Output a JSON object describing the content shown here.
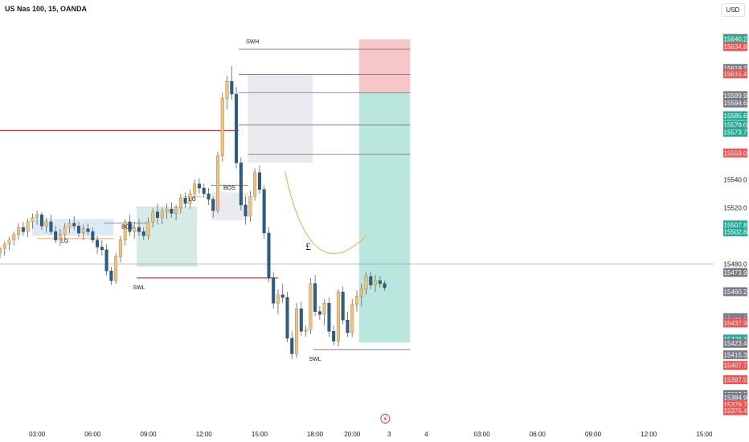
{
  "header": {
    "title": "US Nas 100, 15, OANDA",
    "currency": "USD"
  },
  "colors": {
    "up": "#f0c27a",
    "down": "#2b5f86",
    "neutral": "#6e6f73",
    "red_label": "#f05350",
    "green_label": "#22ab94",
    "gray_label": "#787b86",
    "line_red": "#e53935",
    "line_orange": "#f5a742",
    "zone_blue": "#dceaf5",
    "zone_green": "#d6eae6",
    "zone_gray": "#e9ebf0",
    "target_green": "#b9e6dd",
    "stop_red": "#f6c6c9"
  },
  "chart_data": {
    "type": "candlestick",
    "title": "US Nas 100, 15, OANDA",
    "y_unit": "USD",
    "ylim": [
      15368,
      15668
    ],
    "price_axis_labels": [
      {
        "value": "15640.7",
        "style": "red"
      },
      {
        "value": "15640.2",
        "style": "green"
      },
      {
        "value": "15634.8",
        "style": "red"
      },
      {
        "value": "15619.2",
        "style": "gray"
      },
      {
        "value": "15615.4",
        "style": "red"
      },
      {
        "value": "15599.9",
        "style": "gray"
      },
      {
        "value": "15594.6",
        "style": "gray"
      },
      {
        "value": "15585.6",
        "style": "green"
      },
      {
        "value": "15579.0",
        "style": "green"
      },
      {
        "value": "15574.3",
        "style": "gray"
      },
      {
        "value": "15573.7",
        "style": "green"
      },
      {
        "value": "15559.0",
        "style": "red"
      },
      {
        "value": "15540.0",
        "style": "plain"
      },
      {
        "value": "15520.0",
        "style": "plain"
      },
      {
        "value": "15507.8",
        "style": "green"
      },
      {
        "value": "15502.8",
        "style": "green"
      },
      {
        "value": "15480.0",
        "style": "plain"
      },
      {
        "value": "15473.9",
        "style": "gray"
      },
      {
        "value": "15460.2",
        "style": "gray"
      },
      {
        "value": "15441.7",
        "style": "gray"
      },
      {
        "value": "15439.9",
        "style": "gray"
      },
      {
        "value": "15437.9",
        "style": "red"
      },
      {
        "value": "15426.5",
        "style": "red"
      },
      {
        "value": "15426.4",
        "style": "green"
      },
      {
        "value": "15423.4",
        "style": "gray"
      },
      {
        "value": "15415.3",
        "style": "gray"
      },
      {
        "value": "15407.7",
        "style": "red"
      },
      {
        "value": "15397.5",
        "style": "red"
      },
      {
        "value": "15387.0",
        "style": "gray"
      },
      {
        "value": "15384.9",
        "style": "gray"
      },
      {
        "value": "15379.7",
        "style": "red"
      },
      {
        "value": "15375.4",
        "style": "red"
      }
    ],
    "x_ticks": [
      {
        "label": "03:00",
        "bar": 3.0
      },
      {
        "label": "06:00",
        "bar": 15.0
      },
      {
        "label": "09:00",
        "bar": 27.0
      },
      {
        "label": "12:00",
        "bar": 39.0
      },
      {
        "label": "15:00",
        "bar": 51.0
      },
      {
        "label": "18:00",
        "bar": 63.0
      },
      {
        "label": "20:00",
        "bar": 71.0
      },
      {
        "label": "3",
        "bar": 79.0
      },
      {
        "label": "4",
        "bar": 87.0
      },
      {
        "label": "03:00",
        "bar": 99.0
      },
      {
        "label": "06:00",
        "bar": 111.0
      },
      {
        "label": "09:00",
        "bar": 123.0
      },
      {
        "label": "12:00",
        "bar": 135.0
      },
      {
        "label": "15:00",
        "bar": 147.0
      }
    ],
    "x_bar_range": [
      -5,
      149
    ],
    "candles": [
      [
        15488,
        15492,
        15484,
        15491
      ],
      [
        15491,
        15496,
        15486,
        15494
      ],
      [
        15494,
        15499,
        15490,
        15497
      ],
      [
        15497,
        15503,
        15493,
        15501
      ],
      [
        15501,
        15509,
        15497,
        15506
      ],
      [
        15506,
        15510,
        15500,
        15503
      ],
      [
        15503,
        15512,
        15499,
        15510
      ],
      [
        15510,
        15516,
        15505,
        15513
      ],
      [
        15513,
        15518,
        15508,
        15515
      ],
      [
        15515,
        15517,
        15504,
        15507
      ],
      [
        15507,
        15513,
        15502,
        15510
      ],
      [
        15510,
        15515,
        15501,
        15503
      ],
      [
        15503,
        15507,
        15495,
        15497
      ],
      [
        15497,
        15505,
        15493,
        15501
      ],
      [
        15501,
        15509,
        15497,
        15506
      ],
      [
        15506,
        15512,
        15502,
        15509
      ],
      [
        15509,
        15514,
        15504,
        15507
      ],
      [
        15507,
        15510,
        15499,
        15502
      ],
      [
        15502,
        15508,
        15497,
        15505
      ],
      [
        15505,
        15509,
        15500,
        15503
      ],
      [
        15503,
        15506,
        15495,
        15497
      ],
      [
        15497,
        15500,
        15487,
        15492
      ],
      [
        15492,
        15497,
        15486,
        15490
      ],
      [
        15490,
        15494,
        15472,
        15475
      ],
      [
        15475,
        15478,
        15465,
        15468
      ],
      [
        15468,
        15488,
        15466,
        15485
      ],
      [
        15485,
        15500,
        15481,
        15497
      ],
      [
        15497,
        15512,
        15493,
        15510
      ],
      [
        15510,
        15515,
        15500,
        15503
      ],
      [
        15503,
        15510,
        15498,
        15506
      ],
      [
        15506,
        15512,
        15500,
        15503
      ],
      [
        15503,
        15506,
        15497,
        15500
      ],
      [
        15500,
        15513,
        15497,
        15510
      ],
      [
        15510,
        15520,
        15506,
        15517
      ],
      [
        15517,
        15523,
        15508,
        15513
      ],
      [
        15513,
        15520,
        15508,
        15517
      ],
      [
        15517,
        15523,
        15512,
        15519
      ],
      [
        15519,
        15524,
        15513,
        15516
      ],
      [
        15516,
        15522,
        15511,
        15520
      ],
      [
        15520,
        15530,
        15516,
        15527
      ],
      [
        15527,
        15531,
        15520,
        15523
      ],
      [
        15523,
        15533,
        15519,
        15530
      ],
      [
        15530,
        15540,
        15526,
        15537
      ],
      [
        15537,
        15541,
        15530,
        15534
      ],
      [
        15534,
        15537,
        15527,
        15530
      ],
      [
        15530,
        15534,
        15522,
        15526
      ],
      [
        15526,
        15528,
        15513,
        15518
      ],
      [
        15518,
        15560,
        15516,
        15557
      ],
      [
        15557,
        15602,
        15553,
        15598
      ],
      [
        15598,
        15614,
        15590,
        15610
      ],
      [
        15610,
        15621,
        15597,
        15601
      ],
      [
        15601,
        15606,
        15548,
        15552
      ],
      [
        15552,
        15556,
        15518,
        15522
      ],
      [
        15522,
        15528,
        15508,
        15514
      ],
      [
        15514,
        15532,
        15510,
        15528
      ],
      [
        15528,
        15548,
        15525,
        15545
      ],
      [
        15545,
        15550,
        15530,
        15533
      ],
      [
        15533,
        15536,
        15498,
        15502
      ],
      [
        15502,
        15506,
        15467,
        15470
      ],
      [
        15470,
        15474,
        15448,
        15452
      ],
      [
        15452,
        15462,
        15444,
        15458
      ],
      [
        15458,
        15466,
        15452,
        15456
      ],
      [
        15456,
        15460,
        15424,
        15427
      ],
      [
        15427,
        15432,
        15412,
        15416
      ],
      [
        15416,
        15452,
        15413,
        15448
      ],
      [
        15448,
        15453,
        15429,
        15432
      ],
      [
        15432,
        15436,
        15428,
        15433
      ],
      [
        15433,
        15470,
        15430,
        15466
      ],
      [
        15466,
        15472,
        15443,
        15446
      ],
      [
        15446,
        15450,
        15440,
        15444
      ],
      [
        15444,
        15455,
        15436,
        15452
      ],
      [
        15452,
        15456,
        15428,
        15432
      ],
      [
        15432,
        15436,
        15422,
        15425
      ],
      [
        15425,
        15462,
        15421,
        15460
      ],
      [
        15460,
        15464,
        15437,
        15440
      ],
      [
        15440,
        15446,
        15428,
        15431
      ],
      [
        15431,
        15455,
        15428,
        15451
      ],
      [
        15451,
        15461,
        15446,
        15457
      ],
      [
        15457,
        15466,
        15450,
        15462
      ],
      [
        15462,
        15474,
        15458,
        15471
      ],
      [
        15471,
        15474,
        15462,
        15465
      ],
      [
        15465,
        15472,
        15460,
        15468
      ],
      [
        15468,
        15471,
        15463,
        15466
      ],
      [
        15466,
        15468,
        15461,
        15463
      ]
    ],
    "first_candle_bar": -5,
    "boxes": [
      {
        "x0": 2.0,
        "x1": 19.5,
        "y0": 15500,
        "y1": 15512,
        "fill": "zone_blue"
      },
      {
        "x0": 24.5,
        "x1": 37.5,
        "y0": 15478,
        "y1": 15521,
        "fill": "zone_green"
      },
      {
        "x0": 40.5,
        "x1": 48.5,
        "y0": 15511,
        "y1": 15531,
        "fill": "zone_gray"
      },
      {
        "x0": 48.5,
        "x1": 62.5,
        "y0": 15579,
        "y1": 15615,
        "fill": "zone_gray"
      },
      {
        "x0": 48.5,
        "x1": 62.5,
        "y0": 15552,
        "y1": 15579,
        "fill": "zone_gray"
      },
      {
        "x0": 72.5,
        "x1": 83.5,
        "y0": 15602,
        "y1": 15640,
        "fill": "stop_red"
      },
      {
        "x0": 72.5,
        "x1": 83.5,
        "y0": 15424,
        "y1": 15602,
        "fill": "target_green"
      }
    ],
    "hlines": [
      {
        "x0": -5,
        "x1": 46.5,
        "y": 15575,
        "color": "line_red",
        "width": 1.3
      },
      {
        "x0": 24.5,
        "x1": 55.0,
        "y": 15470,
        "color": "line_red",
        "width": 1.3
      },
      {
        "x0": 3.0,
        "x1": 19.5,
        "y": 15498,
        "color": "line_orange",
        "width": 1.0
      },
      {
        "x0": 17.5,
        "x1": 27.0,
        "y": 15509,
        "color": "neutral",
        "width": 0.8
      },
      {
        "x0": 34.5,
        "x1": 38.5,
        "y": 15528,
        "color": "line_orange",
        "width": 0.8
      },
      {
        "x0": 40.5,
        "x1": 48.5,
        "y": 15536,
        "color": "neutral",
        "width": 0.8
      },
      {
        "x0": 46.5,
        "x1": 83.5,
        "y": 15633,
        "color": "neutral",
        "width": 0.8
      },
      {
        "x0": 46.5,
        "x1": 83.5,
        "y": 15615,
        "color": "neutral",
        "width": 0.8
      },
      {
        "x0": 46.5,
        "x1": 83.5,
        "y": 15602,
        "color": "neutral",
        "width": 0.8
      },
      {
        "x0": 46.5,
        "x1": 83.5,
        "y": 15579,
        "color": "neutral",
        "width": 0.8
      },
      {
        "x0": 48.5,
        "x1": 83.5,
        "y": 15558,
        "color": "neutral",
        "width": 0.8
      },
      {
        "x0": 62.5,
        "x1": 83.5,
        "y": 15419,
        "color": "neutral",
        "width": 0.8
      },
      {
        "x0": -5,
        "x1": 149,
        "y": 15480,
        "color": "gray_label",
        "width": 0.6
      }
    ],
    "annotations": [
      {
        "text": "LG",
        "x": 9.0,
        "y": 15495
      },
      {
        "text": "BOS",
        "x": 22.5,
        "y": 15505
      },
      {
        "text": "LG",
        "x": 36.5,
        "y": 15525
      },
      {
        "text": "BOS",
        "x": 44.5,
        "y": 15533
      },
      {
        "text": "SWH",
        "x": 49.5,
        "y": 15637
      },
      {
        "text": "SWL",
        "x": 25.0,
        "y": 15462
      },
      {
        "text": "SWL",
        "x": 63.0,
        "y": 15411
      }
    ],
    "curve": {
      "from": [
        56.5,
        15546
      ],
      "control": [
        62.0,
        15460
      ],
      "to": [
        74.0,
        15500
      ],
      "label": "£"
    },
    "session_icon": "lightning-icon"
  }
}
